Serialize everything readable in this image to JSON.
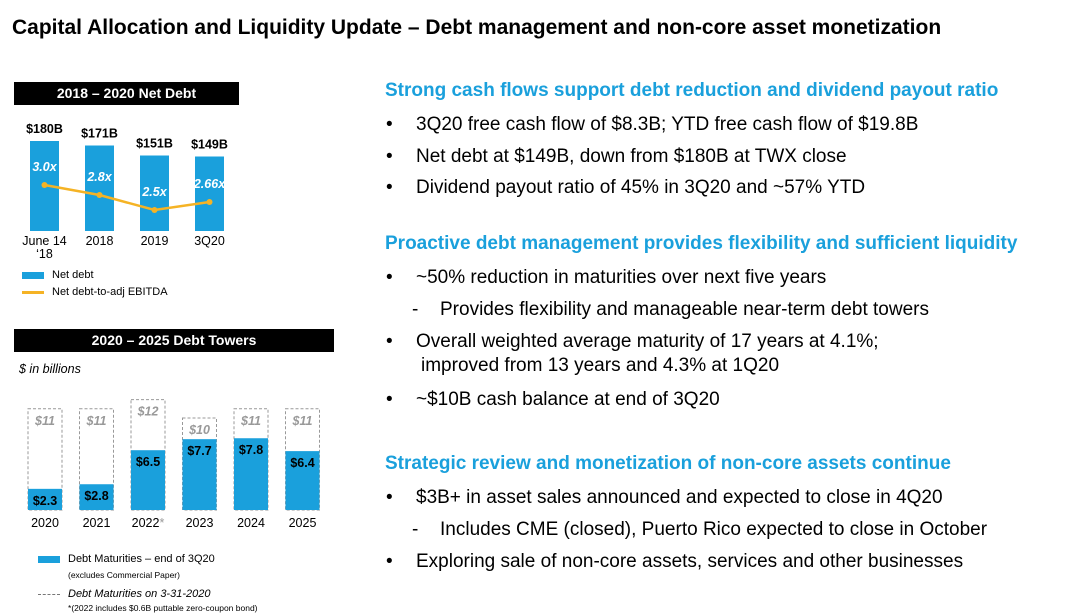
{
  "title": "Capital Allocation and Liquidity Update – Debt management and non-core asset monetization",
  "net_debt_panel": {
    "heading": "2018 – 2020 Net Debt",
    "legend_bar": "Net debt",
    "legend_line": "Net debt-to-adj EBITDA"
  },
  "towers_panel": {
    "heading": "2020 – 2025 Debt Towers",
    "unit_note": "$ in billions",
    "legend_solid": "Debt Maturities – end of 3Q20",
    "legend_solid_sub": "(excludes Commercial Paper)",
    "legend_dashed": "Debt Maturities on 3-31-2020",
    "legend_dashed_sub": "(2022 includes $0.6B puttable zero-coupon bond)",
    "legend_dashed_sub_mark": "*"
  },
  "chart_data": [
    {
      "type": "bar",
      "title": "2018 – 2020 Net Debt",
      "categories": [
        "June 14 ‘18",
        "2018",
        "2019",
        "3Q20"
      ],
      "category_lines": [
        [
          "June 14",
          "‘18"
        ],
        [
          "2018"
        ],
        [
          "2019"
        ],
        [
          "3Q20"
        ]
      ],
      "series": [
        {
          "name": "Net debt",
          "values": [
            180,
            171,
            151,
            149
          ],
          "labels": [
            "$180B",
            "$171B",
            "$151B",
            "$149B"
          ],
          "color": "#1aa0dc"
        },
        {
          "name": "Net debt-to-adj EBITDA",
          "type": "line",
          "values": [
            3.0,
            2.8,
            2.5,
            2.66
          ],
          "labels": [
            "3.0x",
            "2.8x",
            "2.5x",
            "2.66x"
          ],
          "color": "#f5b325"
        }
      ],
      "ylim": [
        0,
        200
      ],
      "legend": "bottom-left"
    },
    {
      "type": "bar",
      "title": "2020 – 2025 Debt Towers",
      "categories": [
        "2020",
        "2021",
        "2022*",
        "2023",
        "2024",
        "2025"
      ],
      "series": [
        {
          "name": "Debt Maturities – end of 3Q20",
          "values": [
            2.3,
            2.8,
            6.5,
            7.7,
            7.8,
            6.4
          ],
          "labels": [
            "$2.3",
            "$2.8",
            "$6.5",
            "$7.7",
            "$7.8",
            "$6.4"
          ],
          "color": "#1aa0dc"
        },
        {
          "name": "Debt Maturities on 3-31-2020",
          "values": [
            11,
            11,
            12,
            10,
            11,
            11
          ],
          "labels": [
            "$11",
            "$11",
            "$12",
            "$10",
            "$11",
            "$11"
          ],
          "style": "dashed"
        }
      ],
      "ylim": [
        0,
        13
      ],
      "legend": "bottom-left"
    }
  ],
  "right_sections": [
    {
      "heading": "Strong cash flows support debt reduction and dividend payout ratio",
      "items": [
        {
          "bullet": "•",
          "lines": [
            "3Q20 free cash flow of $8.3B; YTD free cash flow of $19.8B"
          ]
        },
        {
          "bullet": "•",
          "lines": [
            "Net debt at $149B, down from $180B at TWX close"
          ]
        },
        {
          "bullet": "•",
          "lines": [
            "Dividend payout ratio of 45% in 3Q20 and ~57% YTD"
          ]
        }
      ]
    },
    {
      "heading": "Proactive debt management provides flexibility and sufficient liquidity",
      "items": [
        {
          "bullet": "•",
          "lines": [
            "~50% reduction in maturities over next five years"
          ]
        },
        {
          "bullet": "-",
          "lines": [
            "Provides flexibility and manageable near-term debt towers"
          ]
        },
        {
          "bullet": "•",
          "lines": [
            "Overall weighted average maturity of 17 years at 4.1%;",
            "improved from 13 years and 4.3% at 1Q20"
          ]
        },
        {
          "bullet": "•",
          "lines": [
            "~$10B cash balance at end of 3Q20"
          ]
        }
      ]
    },
    {
      "heading": "Strategic review and monetization of non-core assets continue",
      "items": [
        {
          "bullet": "•",
          "lines": [
            "$3B+ in asset sales announced and expected to close in 4Q20"
          ]
        },
        {
          "bullet": "-",
          "lines": [
            "Includes CME (closed), Puerto Rico expected to close in October"
          ]
        },
        {
          "bullet": "•",
          "lines": [
            "Exploring sale of non-core assets, services and other businesses"
          ]
        }
      ]
    }
  ]
}
